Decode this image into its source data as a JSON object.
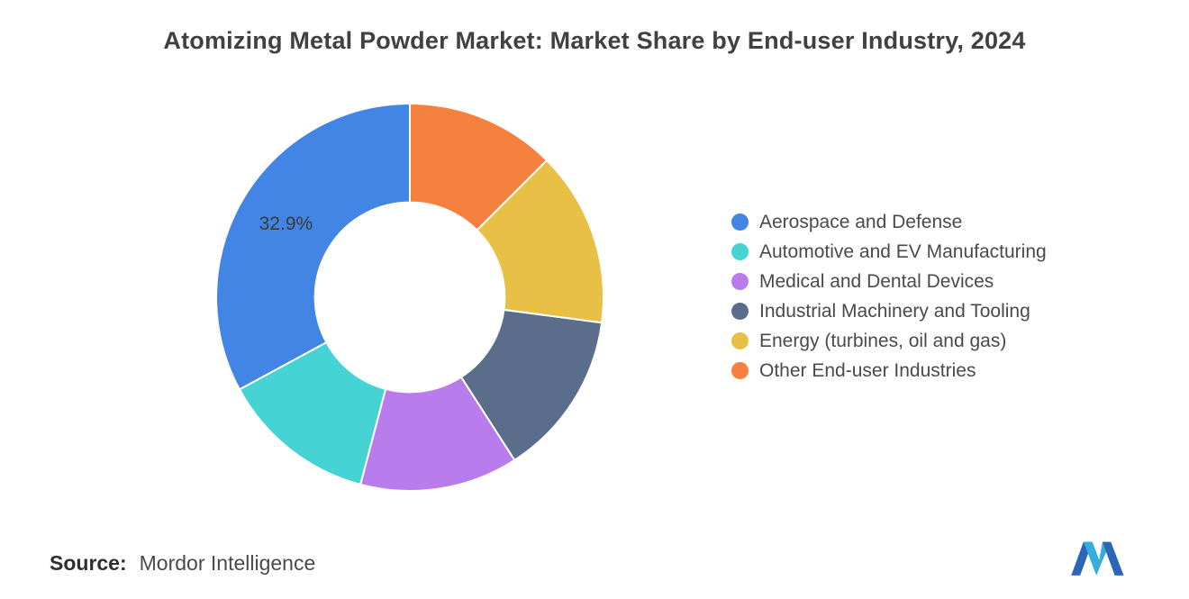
{
  "title": "Atomizing Metal Powder Market: Market Share by End-user Industry, 2024",
  "source": {
    "label": "Source:",
    "value": "Mordor Intelligence"
  },
  "logo": {
    "name": "mordor-intelligence-logo",
    "color_primary": "#2C66B8",
    "color_accent": "#36AEDC"
  },
  "chart_data": {
    "type": "pie",
    "donut": true,
    "title": "Atomizing Metal Powder Market: Market Share by End-user Industry, 2024",
    "legend_position": "right",
    "start_angle_deg": 0,
    "direction": "counterclockwise-from-top",
    "inner_radius_ratio": 0.49,
    "slices": [
      {
        "label": "Aerospace and Defense",
        "value": 32.9,
        "color": "#4285E4",
        "data_label": "32.9%"
      },
      {
        "label": "Automotive and EV Manufacturing",
        "value": 13.0,
        "color": "#45D3D3",
        "data_label": ""
      },
      {
        "label": "Medical and Dental Devices",
        "value": 13.2,
        "color": "#B87CEC",
        "data_label": ""
      },
      {
        "label": "Industrial Machinery and Tooling",
        "value": 13.8,
        "color": "#5A6E8C",
        "data_label": ""
      },
      {
        "label": "Energy (turbines, oil and gas)",
        "value": 14.6,
        "color": "#E9C046",
        "data_label": ""
      },
      {
        "label": "Other End-user Industries",
        "value": 12.5,
        "color": "#F5813F",
        "data_label": ""
      }
    ]
  }
}
